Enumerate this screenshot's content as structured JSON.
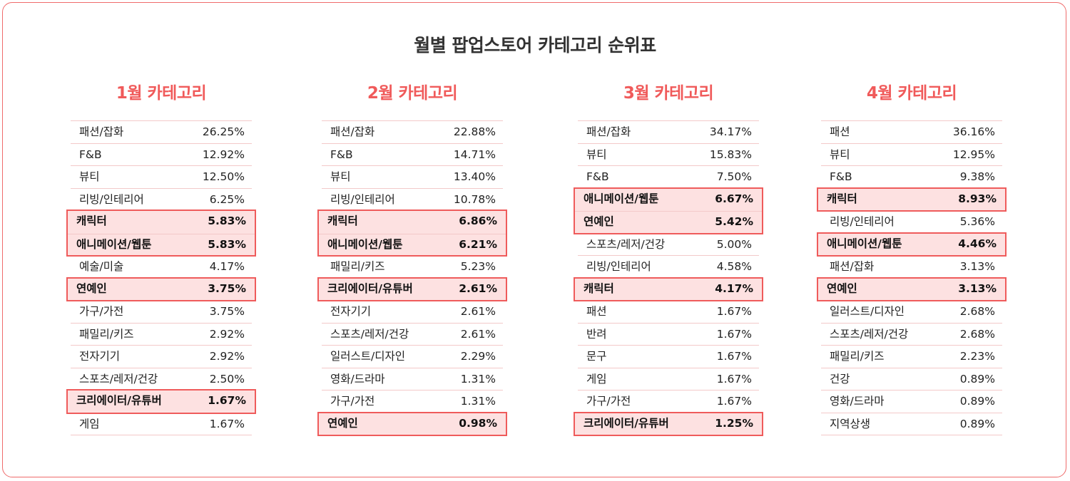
{
  "title": "월별 팝업스토어 카테고리 순위표",
  "months": [
    {
      "title": "1월 카테고리",
      "rows": [
        {
          "name": "패션/잡화",
          "pct": "26.25%",
          "hl": false
        },
        {
          "name": "F&B",
          "pct": "12.92%",
          "hl": false
        },
        {
          "name": "뷰티",
          "pct": "12.50%",
          "hl": false
        },
        {
          "name": "리빙/인테리어",
          "pct": "6.25%",
          "hl": false
        },
        {
          "name": "캐릭터",
          "pct": "5.83%",
          "hl": true
        },
        {
          "name": "애니메이션/웹툰",
          "pct": "5.83%",
          "hl": true
        },
        {
          "name": "예술/미술",
          "pct": "4.17%",
          "hl": false
        },
        {
          "name": "연예인",
          "pct": "3.75%",
          "hl": true
        },
        {
          "name": "가구/가전",
          "pct": "3.75%",
          "hl": false
        },
        {
          "name": "패밀리/키즈",
          "pct": "2.92%",
          "hl": false
        },
        {
          "name": "전자기기",
          "pct": "2.92%",
          "hl": false
        },
        {
          "name": "스포츠/레저/건강",
          "pct": "2.50%",
          "hl": false
        },
        {
          "name": "크리에이터/유튜버",
          "pct": "1.67%",
          "hl": true
        },
        {
          "name": "게임",
          "pct": "1.67%",
          "hl": false
        }
      ]
    },
    {
      "title": "2월 카테고리",
      "rows": [
        {
          "name": "패션/잡화",
          "pct": "22.88%",
          "hl": false
        },
        {
          "name": "F&B",
          "pct": "14.71%",
          "hl": false
        },
        {
          "name": "뷰티",
          "pct": "13.40%",
          "hl": false
        },
        {
          "name": "리빙/인테리어",
          "pct": "10.78%",
          "hl": false
        },
        {
          "name": "캐릭터",
          "pct": "6.86%",
          "hl": true
        },
        {
          "name": "애니메이션/웹툰",
          "pct": "6.21%",
          "hl": true
        },
        {
          "name": "패밀리/키즈",
          "pct": "5.23%",
          "hl": false
        },
        {
          "name": "크리에이터/유튜버",
          "pct": "2.61%",
          "hl": true
        },
        {
          "name": "전자기기",
          "pct": "2.61%",
          "hl": false
        },
        {
          "name": "스포츠/레저/건강",
          "pct": "2.61%",
          "hl": false
        },
        {
          "name": "일러스트/디자인",
          "pct": "2.29%",
          "hl": false
        },
        {
          "name": "영화/드라마",
          "pct": "1.31%",
          "hl": false
        },
        {
          "name": "가구/가전",
          "pct": "1.31%",
          "hl": false
        },
        {
          "name": "연예인",
          "pct": "0.98%",
          "hl": true
        }
      ]
    },
    {
      "title": "3월 카테고리",
      "rows": [
        {
          "name": "패션/잡화",
          "pct": "34.17%",
          "hl": false
        },
        {
          "name": "뷰티",
          "pct": "15.83%",
          "hl": false
        },
        {
          "name": "F&B",
          "pct": "7.50%",
          "hl": false
        },
        {
          "name": "애니메이션/웹툰",
          "pct": "6.67%",
          "hl": true
        },
        {
          "name": "연예인",
          "pct": "5.42%",
          "hl": true
        },
        {
          "name": "스포츠/레저/건강",
          "pct": "5.00%",
          "hl": false
        },
        {
          "name": "리빙/인테리어",
          "pct": "4.58%",
          "hl": false
        },
        {
          "name": "캐릭터",
          "pct": "4.17%",
          "hl": true
        },
        {
          "name": "패션",
          "pct": "1.67%",
          "hl": false
        },
        {
          "name": "반려",
          "pct": "1.67%",
          "hl": false
        },
        {
          "name": "문구",
          "pct": "1.67%",
          "hl": false
        },
        {
          "name": "게임",
          "pct": "1.67%",
          "hl": false
        },
        {
          "name": "가구/가전",
          "pct": "1.67%",
          "hl": false
        },
        {
          "name": "크리에이터/유튜버",
          "pct": "1.25%",
          "hl": true
        }
      ]
    },
    {
      "title": "4월 카테고리",
      "rows": [
        {
          "name": "패션",
          "pct": "36.16%",
          "hl": false
        },
        {
          "name": "뷰티",
          "pct": "12.95%",
          "hl": false
        },
        {
          "name": "F&B",
          "pct": "9.38%",
          "hl": false
        },
        {
          "name": "캐릭터",
          "pct": "8.93%",
          "hl": true
        },
        {
          "name": "리빙/인테리어",
          "pct": "5.36%",
          "hl": false
        },
        {
          "name": "애니메이션/웹툰",
          "pct": "4.46%",
          "hl": true
        },
        {
          "name": "패션/잡화",
          "pct": "3.13%",
          "hl": false
        },
        {
          "name": "연예인",
          "pct": "3.13%",
          "hl": true
        },
        {
          "name": "일러스트/디자인",
          "pct": "2.68%",
          "hl": false
        },
        {
          "name": "스포츠/레저/건강",
          "pct": "2.68%",
          "hl": false
        },
        {
          "name": "패밀리/키즈",
          "pct": "2.23%",
          "hl": false
        },
        {
          "name": "건강",
          "pct": "0.89%",
          "hl": false
        },
        {
          "name": "영화/드라마",
          "pct": "0.89%",
          "hl": false
        },
        {
          "name": "지역상생",
          "pct": "0.89%",
          "hl": false
        }
      ]
    }
  ]
}
